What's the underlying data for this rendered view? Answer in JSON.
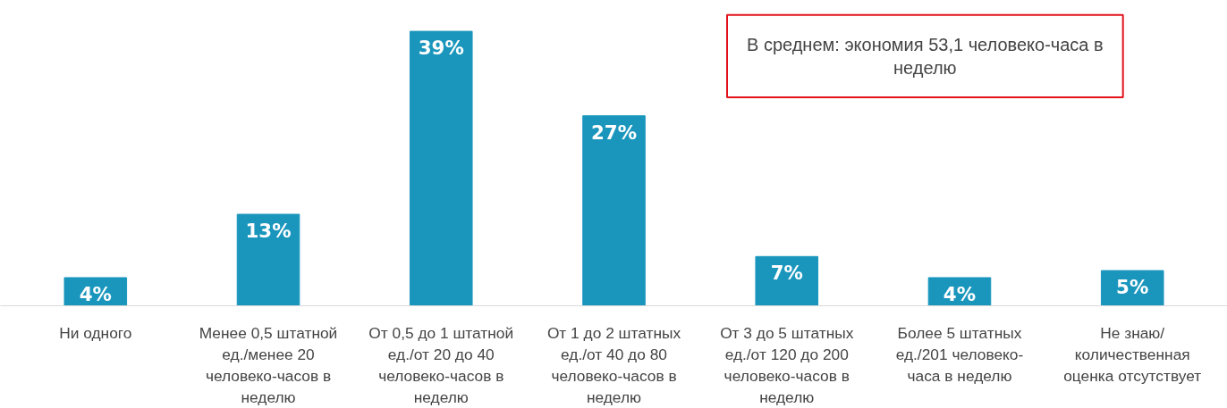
{
  "chart_data": {
    "type": "bar",
    "categories": [
      "Ни одного",
      "Менее 0,5 штатной ед./менее 20 человеко-часов в неделю",
      "От 0,5 до 1 штатной ед./от 20 до 40 человеко-часов в неделю",
      "От 1 до 2 штатных ед./от 40 до 80 человеко-часов в неделю",
      "От 3 до 5 штатных ед./от 120 до 200 человеко-часов в неделю",
      "Более 5 штатных ед./201 человеко-часа в неделю",
      "Не знаю/ количественная оценка отсутствует"
    ],
    "values": [
      4,
      13,
      39,
      27,
      7,
      4,
      5
    ],
    "value_labels": [
      "4%",
      "13%",
      "39%",
      "27%",
      "7%",
      "4%",
      "5%"
    ],
    "color": "#1a96bd",
    "annotations": [
      "В среднем: экономия 53,1 человеко-часа в неделю"
    ],
    "grid": false
  }
}
